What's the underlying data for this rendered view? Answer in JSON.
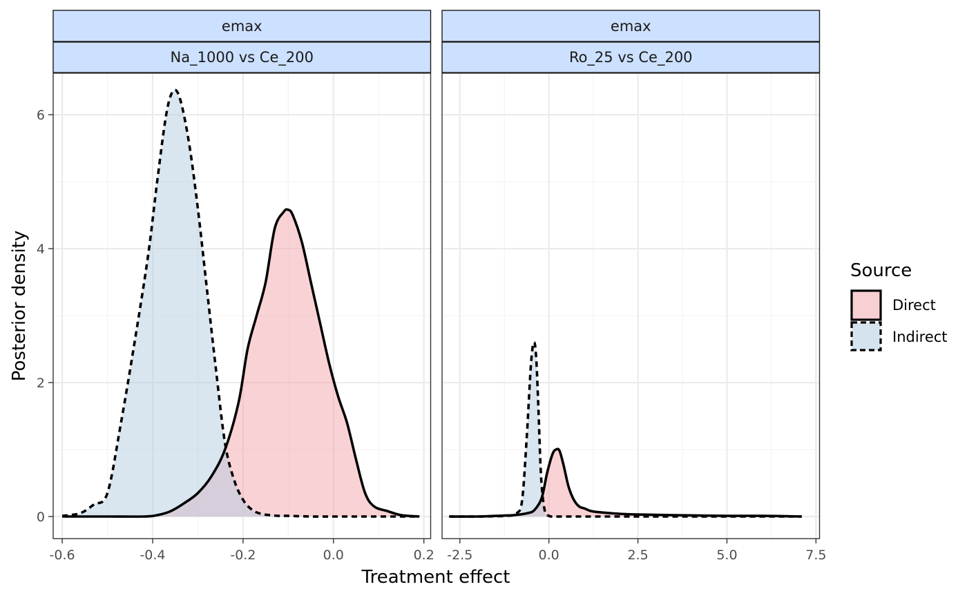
{
  "chart_data": {
    "type": "area",
    "xlabel": "Treatment effect",
    "ylabel": "Posterior density",
    "legend": {
      "title": "Source",
      "placement": "right",
      "entries": [
        {
          "name": "Direct",
          "fill": "#f8d0d3",
          "linetype": "solid"
        },
        {
          "name": "Indirect",
          "fill": "#d5e3ee",
          "linetype": "dashed"
        }
      ]
    },
    "colors": {
      "strip_fill": "#cce0ff",
      "direct_fill": "#f4a6ad",
      "indirect_fill": "#b3cce0",
      "grid": "#ebebeb",
      "line": "#000000"
    },
    "panels": [
      {
        "strip_top": "emax",
        "strip_bottom": "Na_1000 vs Ce_200",
        "xlim": [
          -0.62,
          0.215
        ],
        "ylim": [
          -0.33,
          6.62
        ],
        "x_ticks": [
          -0.6,
          -0.4,
          -0.2,
          0.0,
          0.2
        ],
        "x_tick_labels": [
          "-0.6",
          "-0.4",
          "-0.2",
          "0.0",
          "0.2"
        ],
        "y_ticks": [
          0,
          2,
          4,
          6
        ],
        "y_tick_labels": [
          "0",
          "2",
          "4",
          "6"
        ],
        "series": [
          {
            "name": "Indirect",
            "x": [
              -0.6,
              -0.56,
              -0.53,
              -0.5,
              -0.47,
              -0.44,
              -0.41,
              -0.39,
              -0.37,
              -0.355,
              -0.34,
              -0.32,
              -0.3,
              -0.28,
              -0.26,
              -0.24,
              -0.22,
              -0.2,
              -0.18,
              -0.16,
              -0.14,
              -0.12,
              -0.1,
              -0.05,
              0.0,
              0.05,
              0.1,
              0.15,
              0.19
            ],
            "y": [
              0.01,
              0.05,
              0.18,
              0.35,
              1.4,
              2.6,
              3.9,
              5.0,
              6.0,
              6.35,
              6.25,
              5.6,
              4.6,
              3.4,
              2.2,
              1.1,
              0.55,
              0.25,
              0.1,
              0.04,
              0.02,
              0.01,
              0.01,
              0.0,
              0.0,
              0.0,
              0.0,
              0.0,
              0.0
            ]
          },
          {
            "name": "Direct",
            "x": [
              -0.6,
              -0.5,
              -0.42,
              -0.39,
              -0.36,
              -0.33,
              -0.3,
              -0.27,
              -0.24,
              -0.21,
              -0.19,
              -0.17,
              -0.15,
              -0.13,
              -0.11,
              -0.1,
              -0.09,
              -0.07,
              -0.05,
              -0.03,
              -0.01,
              0.01,
              0.03,
              0.05,
              0.07,
              0.09,
              0.12,
              0.15,
              0.19
            ],
            "y": [
              0.0,
              0.0,
              0.0,
              0.02,
              0.08,
              0.2,
              0.35,
              0.6,
              1.0,
              1.7,
              2.5,
              3.0,
              3.5,
              4.3,
              4.55,
              4.58,
              4.5,
              4.1,
              3.5,
              2.9,
              2.3,
              1.8,
              1.4,
              0.85,
              0.35,
              0.15,
              0.08,
              0.02,
              0.0
            ]
          }
        ]
      },
      {
        "strip_top": "emax",
        "strip_bottom": "Ro_25 vs Ce_200",
        "xlim": [
          -3.0,
          7.6
        ],
        "ylim": [
          -0.33,
          6.62
        ],
        "x_ticks": [
          -2.5,
          0.0,
          2.5,
          5.0,
          7.5
        ],
        "x_tick_labels": [
          "-2.5",
          "0.0",
          "2.5",
          "5.0",
          "7.5"
        ],
        "y_ticks": [
          0,
          2,
          4,
          6
        ],
        "y_tick_labels": [
          "0",
          "2",
          "4",
          "6"
        ],
        "series": [
          {
            "name": "Indirect",
            "x": [
              -2.8,
              -2.0,
              -1.2,
              -0.9,
              -0.75,
              -0.62,
              -0.5,
              -0.42,
              -0.36,
              -0.3,
              -0.22,
              -0.12,
              0.0,
              0.15,
              0.4,
              1.0,
              2.5,
              5.0,
              7.1
            ],
            "y": [
              0.0,
              0.0,
              0.01,
              0.05,
              0.25,
              1.2,
              2.3,
              2.6,
              2.4,
              1.7,
              0.6,
              0.1,
              0.01,
              0.0,
              0.0,
              0.0,
              0.0,
              0.0,
              0.0
            ]
          },
          {
            "name": "Direct",
            "x": [
              -2.8,
              -2.0,
              -1.5,
              -1.0,
              -0.6,
              -0.4,
              -0.2,
              -0.05,
              0.1,
              0.2,
              0.3,
              0.42,
              0.55,
              0.7,
              0.85,
              1.0,
              1.2,
              1.5,
              2.0,
              2.5,
              3.5,
              5.0,
              6.0,
              7.1
            ],
            "y": [
              0.0,
              0.0,
              0.01,
              0.02,
              0.05,
              0.1,
              0.28,
              0.65,
              0.93,
              1.0,
              0.98,
              0.75,
              0.45,
              0.25,
              0.15,
              0.12,
              0.08,
              0.06,
              0.04,
              0.03,
              0.02,
              0.01,
              0.01,
              0.0
            ]
          }
        ]
      }
    ]
  }
}
